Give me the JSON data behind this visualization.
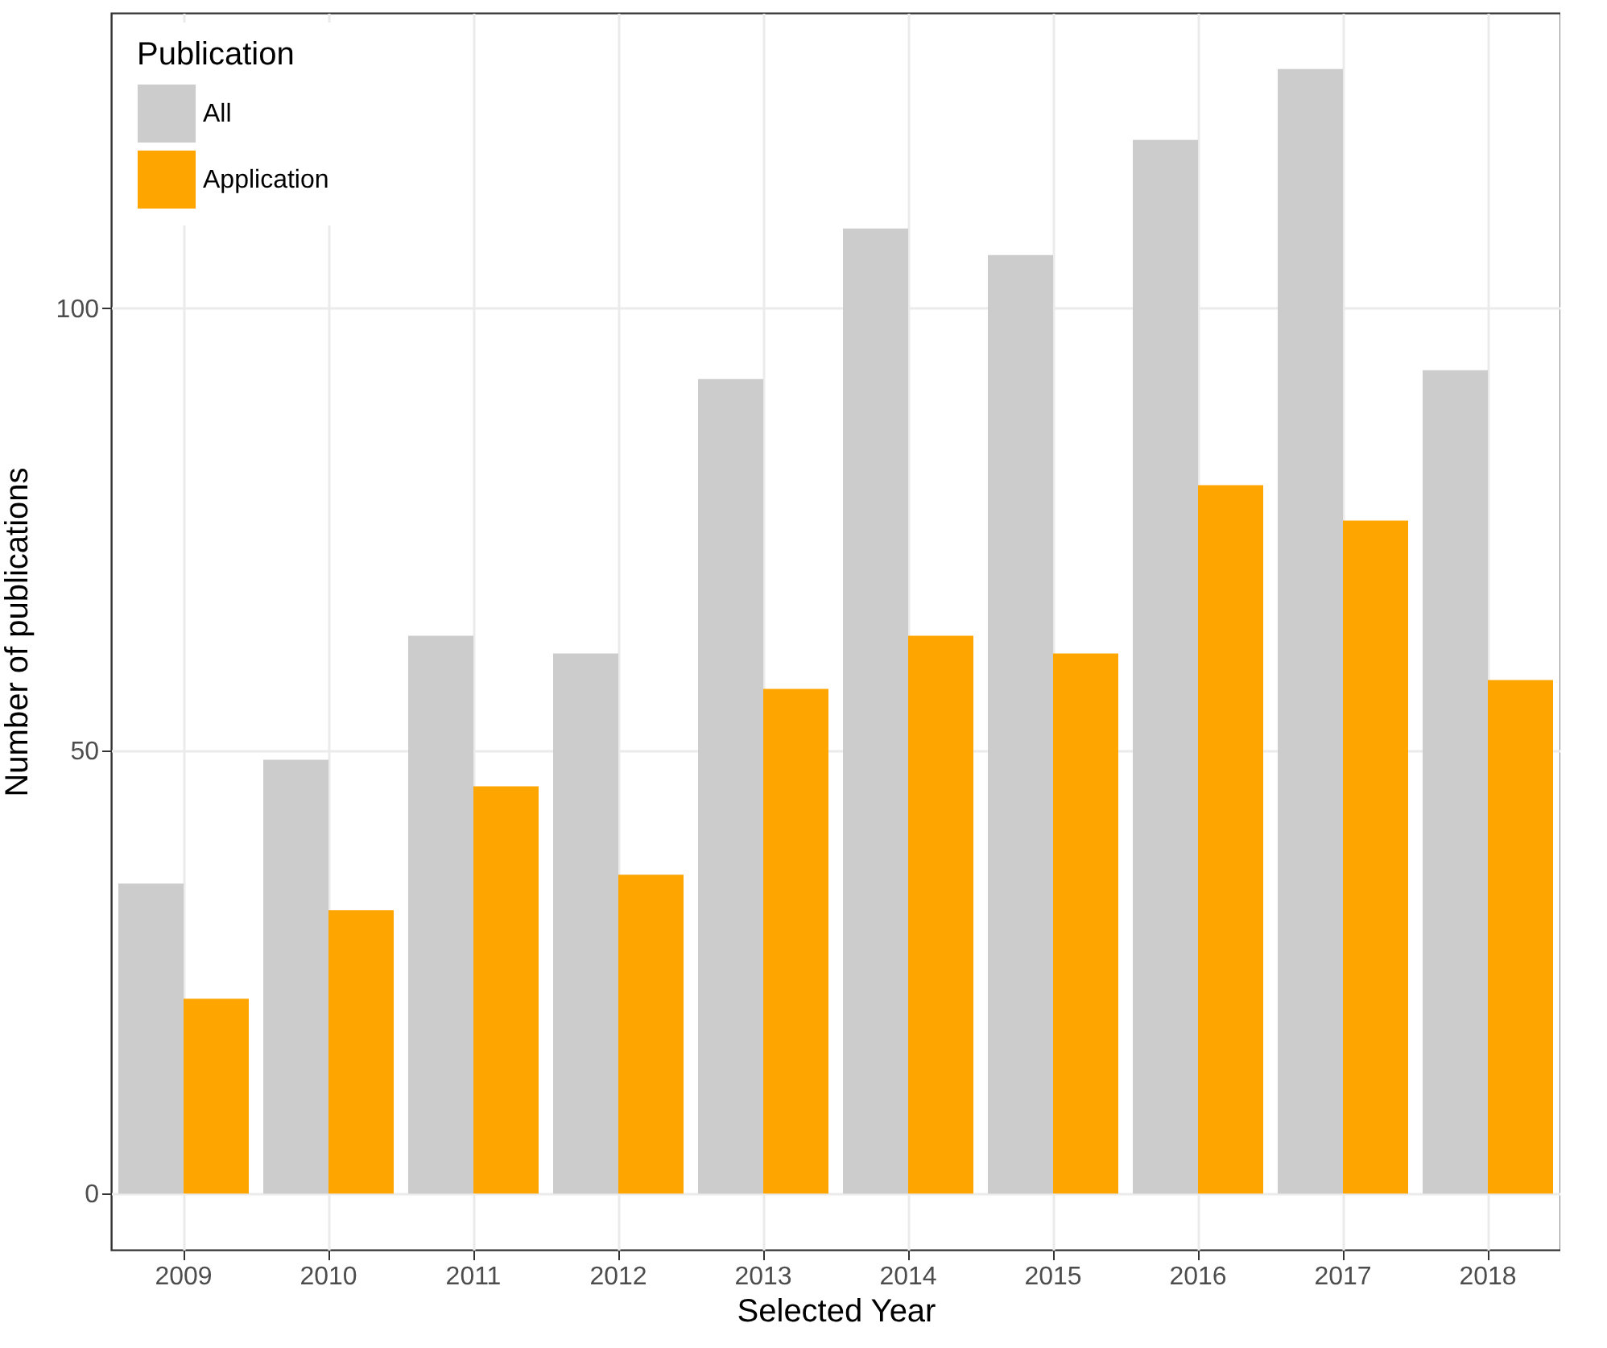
{
  "chart_data": {
    "type": "bar",
    "xlabel": "Selected Year",
    "ylabel": "Number of publications",
    "legend_title": "Publication",
    "categories": [
      "2009",
      "2010",
      "2011",
      "2012",
      "2013",
      "2014",
      "2015",
      "2016",
      "2017",
      "2018"
    ],
    "series": [
      {
        "name": "All",
        "color": "#cccccc",
        "values": [
          35,
          49,
          63,
          61,
          92,
          109,
          106,
          119,
          127,
          93
        ]
      },
      {
        "name": "Application",
        "color": "#ffa500",
        "values": [
          22,
          32,
          46,
          36,
          57,
          63,
          61,
          80,
          76,
          58
        ]
      }
    ],
    "ylim": [
      -6.35,
      133.35
    ],
    "yticks": [
      0,
      50,
      100
    ],
    "grid": true,
    "legend": "top left"
  }
}
